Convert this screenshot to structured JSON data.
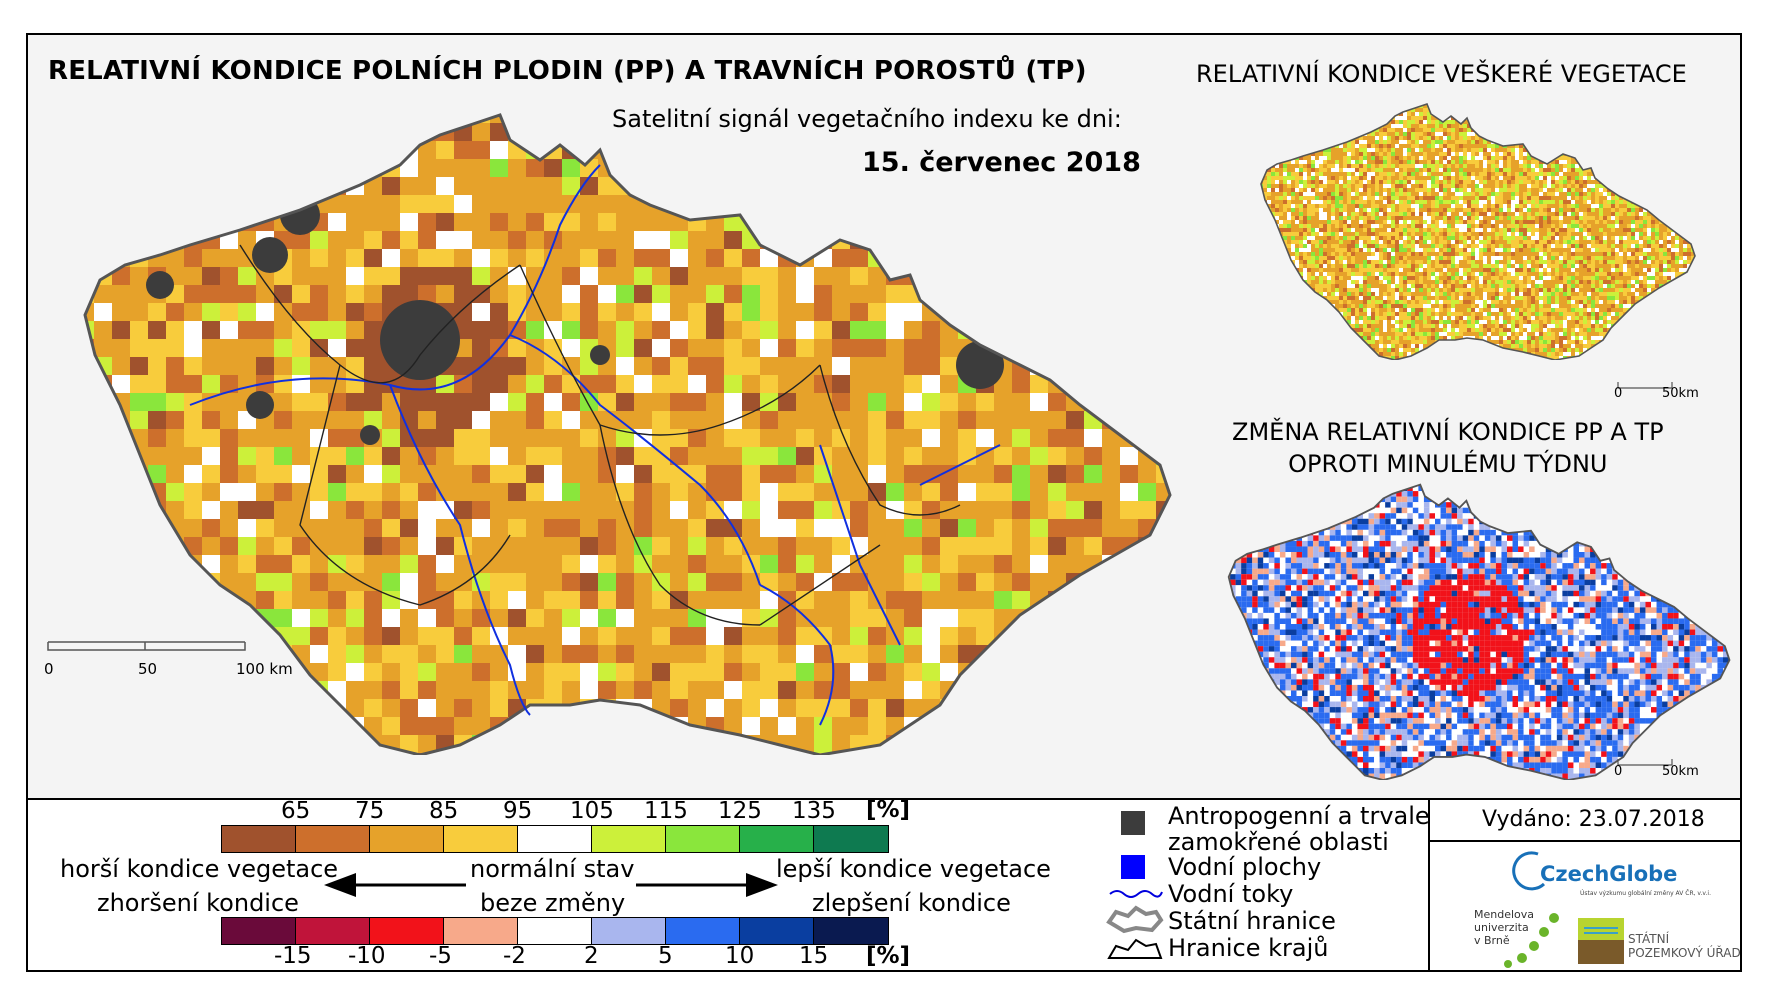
{
  "titles": {
    "main": "RELATIVNÍ KONDICE POLNÍCH PLODIN (PP) A TRAVNÍCH POROSTŮ (TP)",
    "subtitle": "Satelitní signál vegetačního indexu ke dni:",
    "date": "15. červenec 2018",
    "right_top": "RELATIVNÍ KONDICE VEŠKERÉ VEGETACE",
    "right_bottom_line1": "ZMĚNA RELATIVNÍ KONDICE PP A TP",
    "right_bottom_line2": "OPROTI MINULÉMU TÝDNU"
  },
  "scalebar_main": {
    "ticks": [
      "0",
      "50",
      "100 km"
    ]
  },
  "scalebar_small": {
    "ticks": [
      "0",
      "50km"
    ]
  },
  "colorbar_top": {
    "labels": [
      "65",
      "75",
      "85",
      "95",
      "105",
      "115",
      "125",
      "135"
    ],
    "unit": "[%]",
    "colors": [
      "#a0522d",
      "#cd6f2c",
      "#e6a22a",
      "#f8cc3c",
      "#ffffff",
      "#ccf03a",
      "#8ae63c",
      "#27b04a",
      "#0e7a50"
    ]
  },
  "colorbar_bottom": {
    "labels": [
      "-15",
      "-10",
      "-5",
      "-2",
      "2",
      "5",
      "10",
      "15"
    ],
    "unit": "[%]",
    "colors": [
      "#6a0a3a",
      "#c0143a",
      "#f2121a",
      "#f7a98a",
      "#ffffff",
      "#a9b6ee",
      "#2a6bf0",
      "#0a3ea0",
      "#0a1a50"
    ]
  },
  "legend_arrows": {
    "left_line1": "horší kondice vegetace",
    "left_line2": "zhoršení kondice",
    "center_line1": "normální stav",
    "center_line2": "beze změny",
    "right_line1": "lepší kondice vegetace",
    "right_line2": "zlepšení kondice"
  },
  "legend_items": [
    {
      "label": "Antropogenní a trvale",
      "label2": "zamokřené oblasti",
      "icon": "gray-square",
      "color": "#3c3c3c"
    },
    {
      "label": "Vodní plochy",
      "icon": "blue-square",
      "color": "#0000ff"
    },
    {
      "label": "Vodní toky",
      "icon": "river-line",
      "color": "#0000dd"
    },
    {
      "label": "Státní hranice",
      "icon": "state-border",
      "color": "#888888"
    },
    {
      "label": "Hranice krajů",
      "icon": "region-border",
      "color": "#000000"
    }
  ],
  "issued": "Vydáno: 23.07.2018",
  "logos": {
    "czechglobe": "CzechGlobe",
    "czechglobe_sub": "Ústav výzkumu globální změny AV ČR, v.v.i.",
    "mendel_line1": "Mendelova",
    "mendel_line2": "univerzita",
    "mendel_line3": "v Brně",
    "spu_line1": "STÁTNÍ",
    "spu_line2": "POZEMKOVÝ ÚŘAD"
  },
  "maps": {
    "main_colors": [
      "#e6a22a",
      "#f8cc3c",
      "#cd6f2c",
      "#a0522d",
      "#ffffff",
      "#ccf03a",
      "#8ae63c"
    ],
    "change_colors": [
      "#2a6bf0",
      "#a9b6ee",
      "#ffffff",
      "#f7a98a",
      "#f2121a",
      "#0a3ea0"
    ]
  }
}
